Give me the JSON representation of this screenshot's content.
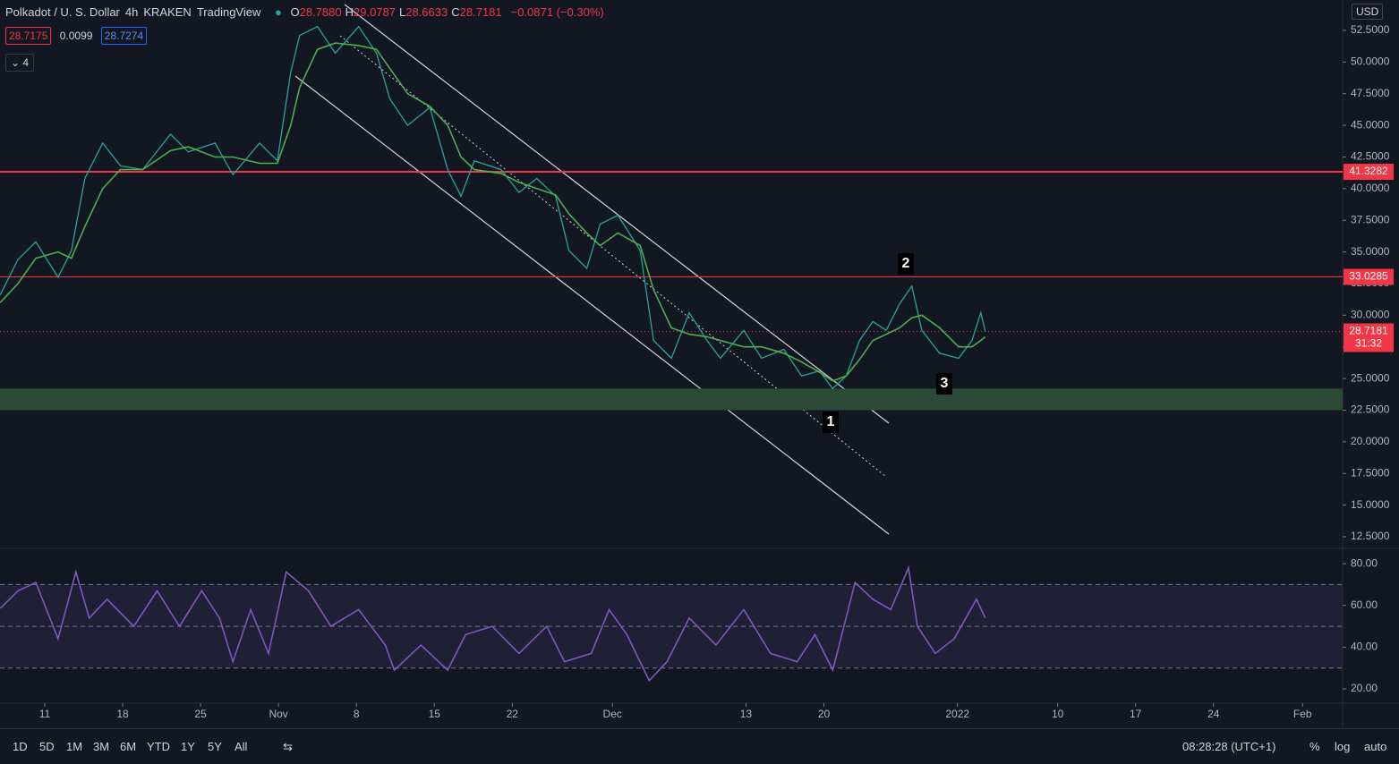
{
  "header": {
    "symbol": "Polkadot / U. S. Dollar",
    "interval": "4h",
    "exchange": "KRAKEN",
    "brand": "TradingView",
    "ohlc": [
      {
        "key": "O",
        "value": "28.7880"
      },
      {
        "key": "H",
        "value": "29.0787"
      },
      {
        "key": "L",
        "value": "28.6633"
      },
      {
        "key": "C",
        "value": "28.7181"
      }
    ],
    "change": "−0.0871 (−0.30%)",
    "bid": "28.7175",
    "spread": "0.0099",
    "ask": "28.7274",
    "indicators_count": "4"
  },
  "currency": "USD",
  "chart_data": [
    {
      "type": "line",
      "x": [
        -4.0,
        -2.4,
        -0.8,
        1.2,
        2.4,
        3.6,
        5.2,
        6.8,
        8.8,
        11.3,
        12.9,
        15.3,
        16.9,
        19.3,
        20.9,
        22.1,
        22.9,
        24.5,
        26.1,
        28.2,
        29.8,
        31.0,
        32.6,
        34.6,
        36.2,
        37.4,
        38.6,
        41.0,
        42.6,
        44.2,
        45.9,
        47.1,
        48.7,
        49.9,
        51.5,
        53.5,
        54.7,
        56.3,
        57.9,
        59.5,
        60.7,
        62.8,
        64.4,
        66.4,
        68.0,
        69.6,
        70.8,
        72.0,
        73.2,
        74.4,
        75.6,
        76.8,
        77.9,
        78.8,
        80.4,
        82.1,
        83.3,
        84.1,
        84.5
      ],
      "series": [
        {
          "color": "#26a69a",
          "values": [
            31.6,
            34.4,
            35.8,
            33.0,
            35.1,
            40.8,
            43.6,
            41.8,
            41.5,
            44.3,
            42.9,
            43.6,
            41.1,
            43.6,
            42.2,
            49.2,
            52.1,
            52.8,
            50.7,
            52.8,
            50.7,
            47.1,
            45.0,
            46.4,
            41.5,
            39.4,
            42.2,
            41.5,
            39.7,
            40.8,
            39.4,
            35.1,
            33.7,
            37.2,
            37.9,
            35.1,
            28.0,
            26.6,
            30.2,
            28.0,
            26.6,
            28.8,
            26.6,
            27.3,
            25.2,
            25.6,
            24.2,
            25.2,
            28.0,
            29.5,
            28.8,
            30.9,
            32.3,
            28.8,
            27.0,
            26.6,
            28.0,
            30.2,
            28.7
          ]
        },
        {
          "color": "#4caf50",
          "values": [
            31,
            32.5,
            34.5,
            35,
            34.5,
            37,
            40,
            41.5,
            41.5,
            43,
            43.3,
            42.5,
            42.5,
            42,
            42,
            45,
            48,
            51,
            51.5,
            51.3,
            51,
            49.5,
            47.5,
            46.5,
            45,
            42.5,
            41.5,
            41.2,
            40.5,
            40,
            39.5,
            38,
            36.5,
            35.5,
            36.5,
            35.5,
            32,
            29,
            28.5,
            28.3,
            28,
            27.5,
            27.5,
            27,
            26.3,
            25.5,
            24.8,
            25.2,
            26.5,
            28,
            28.5,
            29,
            29.8,
            30,
            29,
            27.5,
            27.5,
            28,
            28.3
          ]
        }
      ],
      "xlim": [
        -4.02,
        116.6
      ],
      "ylim": [
        11.65,
        54.9
      ],
      "yticks": [
        {
          "value": 12.5,
          "label": "12.5000"
        },
        {
          "value": 15,
          "label": "15.0000"
        },
        {
          "value": 17.5,
          "label": "17.5000"
        },
        {
          "value": 20,
          "label": "20.0000"
        },
        {
          "value": 22.5,
          "label": "22.5000"
        },
        {
          "value": 25,
          "label": "25.0000"
        },
        {
          "value": 27.5,
          "label": "27.5000"
        },
        {
          "value": 30,
          "label": "30.0000"
        },
        {
          "value": 32.5,
          "label": "32.5000"
        },
        {
          "value": 35,
          "label": "35.0000"
        },
        {
          "value": 37.5,
          "label": "37.5000"
        },
        {
          "value": 40,
          "label": "40.0000"
        },
        {
          "value": 42.5,
          "label": "42.5000"
        },
        {
          "value": 45,
          "label": "45.0000"
        },
        {
          "value": 47.5,
          "label": "47.5000"
        },
        {
          "value": 50,
          "label": "50.0000"
        },
        {
          "value": 52.5,
          "label": "52.5000"
        }
      ],
      "price_lines": [
        {
          "value": 41.3282,
          "label": "41.3282",
          "color": "#f23645"
        },
        {
          "value": 33.0285,
          "label": "33.0285",
          "color": "#f23645"
        },
        {
          "value": 28.7181,
          "label": "28.7181",
          "color": "#f23645"
        }
      ],
      "countdown": "31:32",
      "zones": [
        {
          "from": 22.5,
          "to": 24.2,
          "color": "#2a4a36"
        }
      ],
      "annotations": [
        "1",
        "2",
        "3"
      ]
    },
    {
      "type": "line",
      "x": [
        -4.0,
        -2.4,
        -0.8,
        1.2,
        2.8,
        4.0,
        5.6,
        8.0,
        10.1,
        12.1,
        14.1,
        15.7,
        16.9,
        18.5,
        20.1,
        21.7,
        23.7,
        25.7,
        28.2,
        30.6,
        31.4,
        33.8,
        36.2,
        37.8,
        40.2,
        42.6,
        45.1,
        46.7,
        49.1,
        50.7,
        52.3,
        54.3,
        55.9,
        57.9,
        60.3,
        62.8,
        65.2,
        67.6,
        69.2,
        70.8,
        72.8,
        74.4,
        76.0,
        77.6,
        78.4,
        80.0,
        81.7,
        83.7,
        84.5
      ],
      "series": [
        {
          "color": "#7e57c2",
          "values": [
            58.6,
            67,
            71,
            44,
            76,
            54,
            63,
            50,
            67,
            50,
            67,
            54,
            33,
            58,
            37,
            76,
            67,
            50,
            58,
            41,
            29,
            41,
            29,
            46,
            50,
            37,
            50,
            33,
            37,
            58,
            46,
            24,
            33,
            54,
            41,
            58,
            37,
            33,
            46,
            29,
            71,
            63,
            58,
            78,
            50,
            37,
            44,
            63,
            54
          ]
        }
      ],
      "xlim": [
        -4.02,
        116.6
      ],
      "ylim": [
        13.6,
        86.9
      ],
      "yticks": [
        {
          "value": 20,
          "label": "20.00"
        },
        {
          "value": 40,
          "label": "40.00"
        },
        {
          "value": 60,
          "label": "60.00"
        },
        {
          "value": 80,
          "label": "80.00"
        }
      ],
      "bands": [
        30,
        50,
        70
      ],
      "xticks": [
        {
          "value": 0,
          "label": "11"
        },
        {
          "value": 7,
          "label": "18"
        },
        {
          "value": 14,
          "label": "25"
        },
        {
          "value": 21,
          "label": "Nov"
        },
        {
          "value": 28,
          "label": "8"
        },
        {
          "value": 35,
          "label": "15"
        },
        {
          "value": 42,
          "label": "22"
        },
        {
          "value": 51,
          "label": "Dec"
        },
        {
          "value": 63,
          "label": "13"
        },
        {
          "value": 70,
          "label": "20"
        },
        {
          "value": 82,
          "label": "2022"
        },
        {
          "value": 91,
          "label": "10"
        },
        {
          "value": 98,
          "label": "17"
        },
        {
          "value": 105,
          "label": "24"
        },
        {
          "value": 113,
          "label": "Feb"
        }
      ]
    }
  ],
  "toolbar": {
    "ranges": [
      "1D",
      "5D",
      "1M",
      "3M",
      "6M",
      "YTD",
      "1Y",
      "5Y",
      "All"
    ],
    "clock": "08:28:28 (UTC+1)",
    "options": [
      "%",
      "log",
      "auto"
    ]
  }
}
